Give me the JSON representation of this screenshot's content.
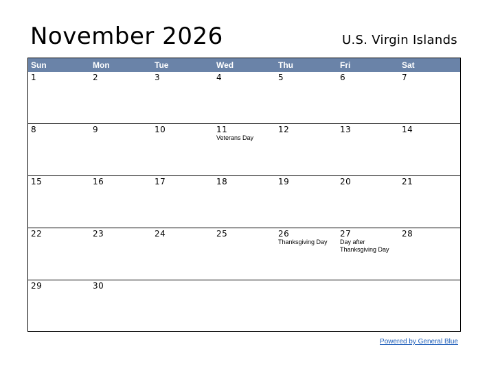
{
  "header": {
    "month_title": "November 2026",
    "region": "U.S. Virgin Islands"
  },
  "colors": {
    "header_bg": "#6a83a8",
    "header_text": "#ffffff",
    "link": "#1a5bb8"
  },
  "calendar": {
    "day_names": [
      "Sun",
      "Mon",
      "Tue",
      "Wed",
      "Thu",
      "Fri",
      "Sat"
    ],
    "weeks": [
      [
        {
          "day": "1"
        },
        {
          "day": "2"
        },
        {
          "day": "3"
        },
        {
          "day": "4"
        },
        {
          "day": "5"
        },
        {
          "day": "6"
        },
        {
          "day": "7"
        }
      ],
      [
        {
          "day": "8"
        },
        {
          "day": "9"
        },
        {
          "day": "10"
        },
        {
          "day": "11",
          "holiday": "Veterans Day"
        },
        {
          "day": "12"
        },
        {
          "day": "13"
        },
        {
          "day": "14"
        }
      ],
      [
        {
          "day": "15"
        },
        {
          "day": "16"
        },
        {
          "day": "17"
        },
        {
          "day": "18"
        },
        {
          "day": "19"
        },
        {
          "day": "20"
        },
        {
          "day": "21"
        }
      ],
      [
        {
          "day": "22"
        },
        {
          "day": "23"
        },
        {
          "day": "24"
        },
        {
          "day": "25"
        },
        {
          "day": "26",
          "holiday": "Thanksgiving Day"
        },
        {
          "day": "27",
          "holiday": "Day after Thanksgiving Day"
        },
        {
          "day": "28"
        }
      ],
      [
        {
          "day": "29"
        },
        {
          "day": "30"
        },
        {
          "day": ""
        },
        {
          "day": ""
        },
        {
          "day": ""
        },
        {
          "day": ""
        },
        {
          "day": ""
        }
      ]
    ]
  },
  "footer": {
    "link_text": "Powered by General Blue"
  }
}
